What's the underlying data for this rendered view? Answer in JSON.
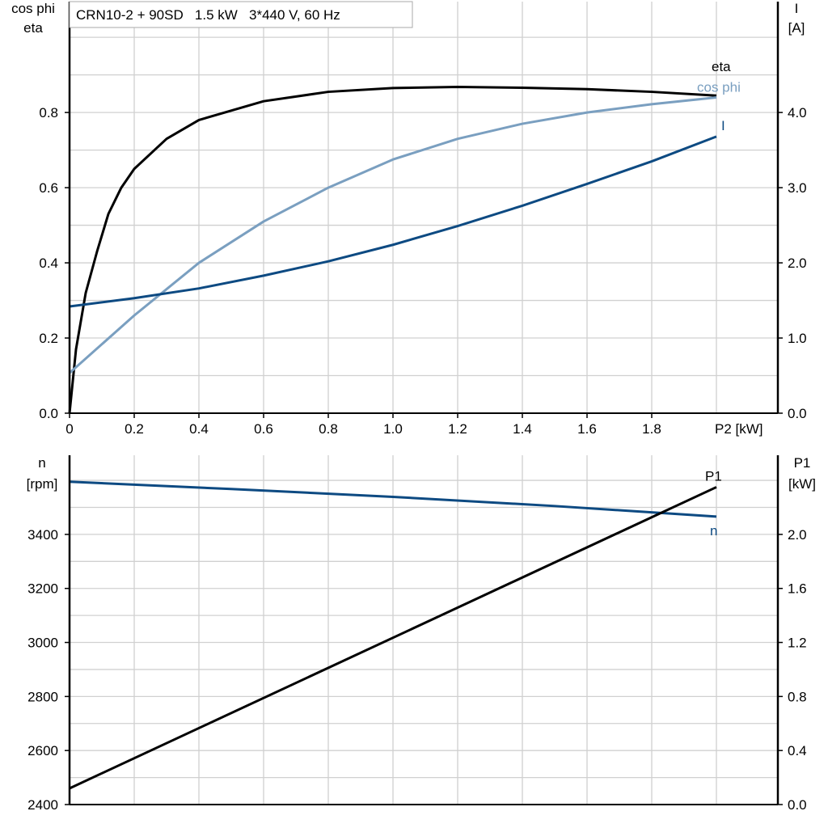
{
  "chart_data": [
    {
      "type": "line",
      "title": "CRN10-2 + 90SD   1.5 kW   3*440 V, 60 Hz",
      "xlabel": "P2 [kW]",
      "ylabel_left": [
        "cos phi",
        "eta"
      ],
      "ylabel_right": [
        "I",
        "[A]"
      ],
      "xlim": [
        0,
        2.19
      ],
      "ylim_left": [
        0,
        1.095
      ],
      "ylim_right": [
        0,
        5.475
      ],
      "xticks": [
        "0",
        "0.2",
        "0.4",
        "0.6",
        "0.8",
        "1.0",
        "1.2",
        "1.4",
        "1.6",
        "1.8"
      ],
      "xtick_values": [
        0,
        0.2,
        0.4,
        0.6,
        0.8,
        1.0,
        1.2,
        1.4,
        1.6,
        1.8
      ],
      "yticks_left": [
        "0.0",
        "0.2",
        "0.4",
        "0.6",
        "0.8"
      ],
      "ytick_left_values": [
        0,
        0.2,
        0.4,
        0.6,
        0.8
      ],
      "yticks_right": [
        "0.0",
        "1.0",
        "2.0",
        "3.0",
        "4.0"
      ],
      "ytick_right_values": [
        0,
        1,
        2,
        3,
        4
      ],
      "grid": true,
      "series": [
        {
          "name": "eta",
          "axis": "left",
          "color": "#000000",
          "x": [
            0,
            0.02,
            0.05,
            0.085,
            0.12,
            0.16,
            0.2,
            0.3,
            0.4,
            0.6,
            0.8,
            1.0,
            1.2,
            1.4,
            1.6,
            1.8,
            2.0
          ],
          "y": [
            0,
            0.17,
            0.32,
            0.43,
            0.53,
            0.6,
            0.65,
            0.73,
            0.78,
            0.83,
            0.855,
            0.865,
            0.868,
            0.866,
            0.862,
            0.855,
            0.845
          ]
        },
        {
          "name": "cos phi",
          "axis": "left",
          "color": "#7a9fc0",
          "x": [
            0,
            0.2,
            0.4,
            0.6,
            0.8,
            1.0,
            1.2,
            1.4,
            1.6,
            1.8,
            2.0
          ],
          "y": [
            0.107,
            0.26,
            0.4,
            0.51,
            0.6,
            0.675,
            0.73,
            0.77,
            0.8,
            0.822,
            0.84
          ]
        },
        {
          "name": "I",
          "axis": "right",
          "color": "#0d4a82",
          "x": [
            0,
            0.2,
            0.4,
            0.6,
            0.8,
            1.0,
            1.2,
            1.4,
            1.6,
            1.8,
            2.0
          ],
          "y": [
            1.42,
            1.53,
            1.66,
            1.83,
            2.02,
            2.24,
            2.49,
            2.76,
            3.05,
            3.35,
            3.68
          ]
        }
      ]
    },
    {
      "type": "line",
      "xlim": [
        0,
        2.19
      ],
      "ylabel_left": [
        "n",
        "[rpm]"
      ],
      "ylabel_right": [
        "P1",
        "[kW]"
      ],
      "ylim_left": [
        2400,
        3693
      ],
      "ylim_right": [
        0,
        2.586
      ],
      "yticks_left": [
        "2400",
        "2600",
        "2800",
        "3000",
        "3200",
        "3400"
      ],
      "ytick_left_values": [
        2400,
        2600,
        2800,
        3000,
        3200,
        3400
      ],
      "yticks_right": [
        "0.0",
        "0.4",
        "0.8",
        "1.2",
        "1.6",
        "2.0"
      ],
      "ytick_right_values": [
        0,
        0.4,
        0.8,
        1.2,
        1.6,
        2.0
      ],
      "grid": true,
      "series": [
        {
          "name": "n",
          "axis": "left",
          "color": "#0d4a82",
          "x": [
            0,
            0.5,
            1.0,
            1.5,
            2.0
          ],
          "y": [
            3595,
            3568,
            3539,
            3505,
            3466
          ]
        },
        {
          "name": "P1",
          "axis": "right",
          "color": "#000000",
          "x": [
            0,
            2.0
          ],
          "y": [
            0.12,
            2.35
          ]
        }
      ]
    }
  ]
}
